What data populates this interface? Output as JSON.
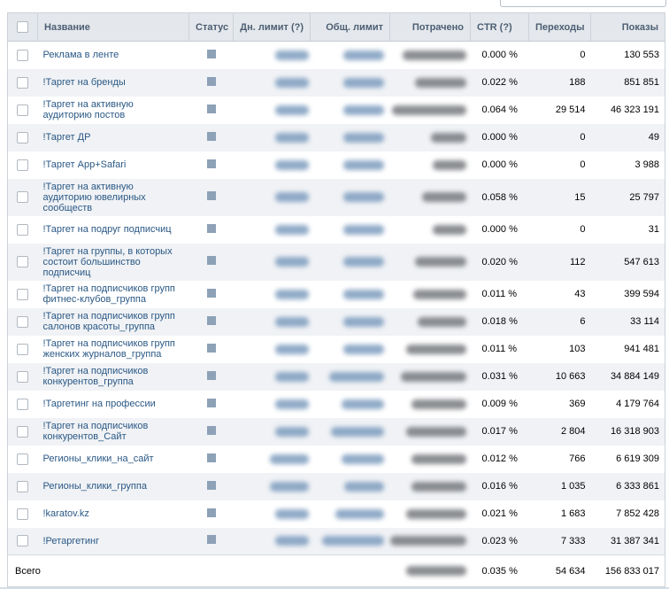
{
  "colors": {
    "header_bg": "#e4e8ec",
    "header_text": "#4d5e73",
    "alt_row_bg": "#f0f2f5",
    "link_blue": "#2a5885",
    "status_square": "#8da1b7",
    "blur_link": "#7d9cbe",
    "blur_spent": "#76797e",
    "table_border": "#ccd2d8"
  },
  "icons": {
    "status": "stopped-square-icon",
    "checkbox": "checkbox"
  },
  "table": {
    "columns": {
      "name": "Название",
      "status": "Статус",
      "daily_limit": "Дн. лимит (?)",
      "total_limit": "Общ. лимит",
      "spent": "Потрачено",
      "ctr": "CTR (?)",
      "clicks": "Переходы",
      "impressions": "Показы"
    },
    "rows": [
      {
        "name": "Реклама в ленте",
        "ctr": "0.000 %",
        "clicks": "0",
        "impressions": "130 553",
        "blur": {
          "daily": 38,
          "total": 46,
          "spent": 72
        }
      },
      {
        "name": "!Таргет на бренды",
        "ctr": "0.022 %",
        "clicks": "188",
        "impressions": "851 851",
        "blur": {
          "daily": 38,
          "total": 46,
          "spent": 58
        }
      },
      {
        "name": "!Таргет на активную аудиторию постов",
        "ctr": "0.064 %",
        "clicks": "29 514",
        "impressions": "46 323 191",
        "blur": {
          "daily": 38,
          "total": 46,
          "spent": 84
        }
      },
      {
        "name": "!Таргет ДР",
        "ctr": "0.000 %",
        "clicks": "0",
        "impressions": "49",
        "blur": {
          "daily": 38,
          "total": 46,
          "spent": 40
        }
      },
      {
        "name": "!Таргет App+Safari",
        "ctr": "0.000 %",
        "clicks": "0",
        "impressions": "3 988",
        "blur": {
          "daily": 38,
          "total": 46,
          "spent": 38
        }
      },
      {
        "name": "!Таргет на активную аудиторию ювелирных сообществ",
        "ctr": "0.058 %",
        "clicks": "15",
        "impressions": "25 797",
        "blur": {
          "daily": 38,
          "total": 46,
          "spent": 50
        }
      },
      {
        "name": "!Таргет на подруг подписчиц",
        "ctr": "0.000 %",
        "clicks": "0",
        "impressions": "31",
        "blur": {
          "daily": 38,
          "total": 46,
          "spent": 38
        }
      },
      {
        "name": "!Таргет на группы, в которых состоит большинство подписчиц",
        "ctr": "0.020 %",
        "clicks": "112",
        "impressions": "547 613",
        "blur": {
          "daily": 38,
          "total": 46,
          "spent": 58
        }
      },
      {
        "name": "!Таргет на подписчиков групп фитнес-клубов_группа",
        "ctr": "0.011 %",
        "clicks": "43",
        "impressions": "399 594",
        "blur": {
          "daily": 38,
          "total": 46,
          "spent": 60
        }
      },
      {
        "name": "!Таргет на подписчиков групп салонов красоты_группа",
        "ctr": "0.018 %",
        "clicks": "6",
        "impressions": "33 114",
        "blur": {
          "daily": 38,
          "total": 46,
          "spent": 55
        }
      },
      {
        "name": "!Таргет на подписчиков групп женских журналов_группа",
        "ctr": "0.011 %",
        "clicks": "103",
        "impressions": "941 481",
        "blur": {
          "daily": 38,
          "total": 46,
          "spent": 68
        }
      },
      {
        "name": "!Таргет на подписчиков конкурентов_группа",
        "ctr": "0.031 %",
        "clicks": "10 663",
        "impressions": "34 884 149",
        "blur": {
          "daily": 38,
          "total": 62,
          "spent": 74
        }
      },
      {
        "name": "!Таргетинг на профессии",
        "ctr": "0.009 %",
        "clicks": "369",
        "impressions": "4 179 764",
        "blur": {
          "daily": 38,
          "total": 48,
          "spent": 62
        }
      },
      {
        "name": "!Таргет на подписчиков конкурентов_Сайт",
        "ctr": "0.017 %",
        "clicks": "2 804",
        "impressions": "16 318 903",
        "blur": {
          "daily": 38,
          "total": 60,
          "spent": 68
        }
      },
      {
        "name": "Регионы_клики_на_сайт",
        "ctr": "0.012 %",
        "clicks": "766",
        "impressions": "6 619 309",
        "blur": {
          "daily": 44,
          "total": 48,
          "spent": 62
        }
      },
      {
        "name": "Регионы_клики_группа",
        "ctr": "0.016 %",
        "clicks": "1 035",
        "impressions": "6 333 861",
        "blur": {
          "daily": 44,
          "total": 45,
          "spent": 62
        }
      },
      {
        "name": "!karatov.kz",
        "ctr": "0.021 %",
        "clicks": "1 683",
        "impressions": "7 852 428",
        "blur": {
          "daily": 38,
          "total": 55,
          "spent": 68
        }
      },
      {
        "name": "!Ретаргетинг",
        "ctr": "0.023 %",
        "clicks": "7 333",
        "impressions": "31 387 341",
        "blur": {
          "daily": 38,
          "total": 70,
          "spent": 86
        }
      }
    ],
    "total": {
      "label": "Всего",
      "ctr": "0.035 %",
      "clicks": "54 634",
      "impressions": "156 833 017",
      "blur": {
        "spent": 68
      }
    }
  }
}
